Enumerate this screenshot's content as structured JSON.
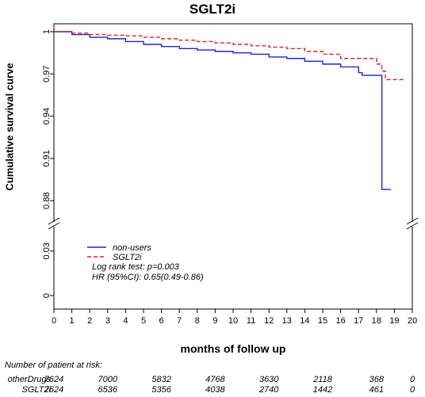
{
  "chart_data": {
    "type": "line",
    "title": "SGLT2i",
    "xlabel": "months of follow up",
    "ylabel": "Cumulative survival curve",
    "xlim": [
      0,
      20
    ],
    "x_ticks": [
      "0",
      "1",
      "2",
      "3",
      "4",
      "5",
      "6",
      "7",
      "8",
      "9",
      "10",
      "11",
      "12",
      "13",
      "14",
      "15",
      "16",
      "17",
      "18",
      "19",
      "20"
    ],
    "y_axis_upper": {
      "range": [
        0.87,
        1.0
      ],
      "ticks": [
        "1",
        "0.97",
        "0.94",
        "0.91",
        "0.88"
      ]
    },
    "y_axis_lower": {
      "range": [
        0,
        0.04
      ],
      "ticks": [
        "0.03",
        "0"
      ]
    },
    "axis_break": true,
    "grid": false,
    "legend_position": "bottom-left",
    "series": [
      {
        "name": "non-users",
        "color": "#2222cc",
        "dash": "solid",
        "x": [
          0,
          1,
          2,
          3,
          4,
          5,
          6,
          7,
          8,
          9,
          10,
          11,
          12,
          13,
          14,
          15,
          16,
          17,
          17.2,
          18,
          18.3,
          18.3,
          18.8
        ],
        "y": [
          1.0,
          0.998,
          0.996,
          0.995,
          0.993,
          0.991,
          0.9895,
          0.988,
          0.987,
          0.986,
          0.985,
          0.984,
          0.982,
          0.981,
          0.979,
          0.977,
          0.975,
          0.971,
          0.969,
          0.969,
          0.969,
          0.888,
          0.888
        ]
      },
      {
        "name": "SGLT2i",
        "color": "#dd2222",
        "dash": "dashed",
        "x": [
          0,
          1,
          2,
          3,
          4,
          5,
          6,
          7,
          8,
          9,
          10,
          11,
          12,
          13,
          14,
          15,
          16,
          17,
          18,
          18.3,
          18.5,
          19.5
        ],
        "y": [
          1.0,
          0.999,
          0.998,
          0.9975,
          0.997,
          0.996,
          0.995,
          0.994,
          0.993,
          0.992,
          0.991,
          0.99,
          0.989,
          0.988,
          0.986,
          0.984,
          0.981,
          0.981,
          0.977,
          0.972,
          0.966,
          0.966
        ]
      }
    ],
    "annotations": [
      "Log rank test: p=0.003",
      "HR (95%CI): 0.65(0.49-0.86)"
    ]
  },
  "risk_table": {
    "title": "Number of patient at risk:",
    "months": [
      0,
      3,
      6,
      9,
      12,
      15,
      18,
      20
    ],
    "rows": [
      {
        "label": "otherDrugs",
        "values": [
          "7624",
          "7000",
          "5832",
          "4768",
          "3630",
          "2118",
          "368",
          "0"
        ]
      },
      {
        "label": "SGLT2i",
        "values": [
          "7624",
          "6536",
          "5356",
          "4038",
          "2740",
          "1442",
          "461",
          "0"
        ]
      }
    ]
  }
}
